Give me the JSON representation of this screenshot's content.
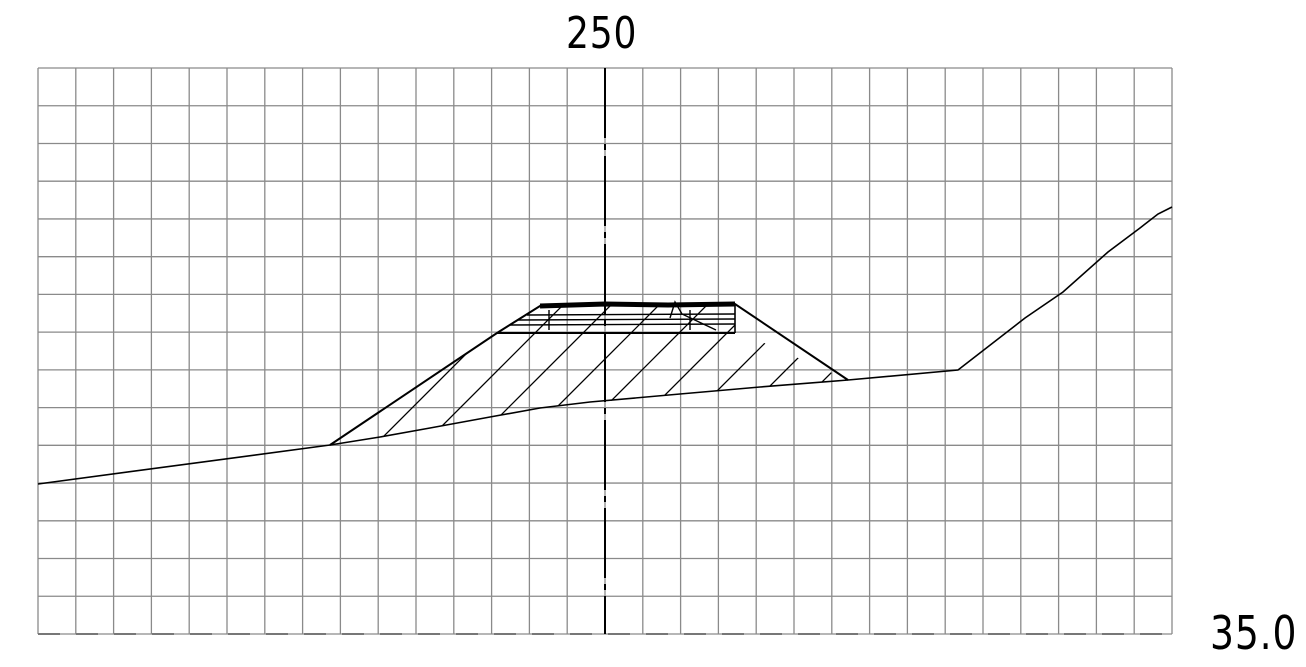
{
  "section": {
    "station_label": "250",
    "datum_elevation_label": "35.0"
  },
  "colors": {
    "grid": "#8a8a8a",
    "linework": "#000000",
    "background": "#ffffff"
  },
  "icons": [
    "centerline",
    "hatch"
  ]
}
